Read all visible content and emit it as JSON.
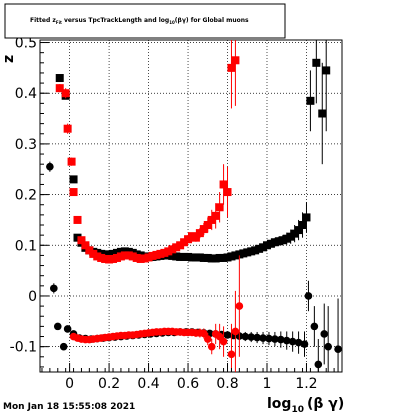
{
  "chart_data": {
    "type": "scatter",
    "title": "Fitted z_Fit versus TpcTrackLength and log_10(βγ) for Global muons",
    "title_parts": {
      "pre": "Fitted z",
      "sub1": "Fit",
      "mid": " versus TpcTrackLength and log",
      "sub2": "10",
      "post": "(βγ) for Global muons"
    },
    "timestamp": "Mon Jan 18 15:55:08 2021",
    "xlabel_main": "log",
    "xlabel_sub": "10",
    "xlabel_tail": "(β γ)",
    "ylabel": "z",
    "xlim": [
      -0.15,
      1.38
    ],
    "ylim": [
      -0.15,
      0.505
    ],
    "grid": true,
    "x_ticks": [
      {
        "v": 0,
        "label": "0"
      },
      {
        "v": 0.2,
        "label": "0.2"
      },
      {
        "v": 0.4,
        "label": "0.4"
      },
      {
        "v": 0.6,
        "label": "0.6"
      },
      {
        "v": 0.8,
        "label": "0.8"
      },
      {
        "v": 1,
        "label": "1"
      },
      {
        "v": 1.2,
        "label": "1.2"
      }
    ],
    "y_ticks": [
      {
        "v": -0.1,
        "label": "-0.1"
      },
      {
        "v": 0,
        "label": "0"
      },
      {
        "v": 0.1,
        "label": "0.1"
      },
      {
        "v": 0.2,
        "label": "0.2"
      },
      {
        "v": 0.3,
        "label": "0.3"
      },
      {
        "v": 0.4,
        "label": "0.4"
      },
      {
        "v": 0.5,
        "label": "0.5"
      }
    ],
    "series": [
      {
        "color": "#000000",
        "marker": "square",
        "points": [
          [
            -0.05,
            0.43,
            0.005
          ],
          [
            -0.02,
            0.395,
            0.006
          ],
          [
            0.02,
            0.23,
            0.006
          ],
          [
            0.04,
            0.115,
            0.004
          ],
          [
            0.06,
            0.105,
            0.003
          ],
          [
            0.08,
            0.095,
            0.003
          ],
          [
            0.1,
            0.09,
            0.003
          ],
          [
            0.12,
            0.087,
            0.003
          ],
          [
            0.14,
            0.085,
            0.003
          ],
          [
            0.16,
            0.083,
            0.003
          ],
          [
            0.18,
            0.082,
            0.003
          ],
          [
            0.2,
            0.082,
            0.003
          ],
          [
            0.22,
            0.083,
            0.003
          ],
          [
            0.24,
            0.085,
            0.003
          ],
          [
            0.26,
            0.087,
            0.003
          ],
          [
            0.28,
            0.088,
            0.003
          ],
          [
            0.3,
            0.087,
            0.003
          ],
          [
            0.32,
            0.085,
            0.003
          ],
          [
            0.34,
            0.082,
            0.003
          ],
          [
            0.36,
            0.08,
            0.003
          ],
          [
            0.38,
            0.078,
            0.003
          ],
          [
            0.4,
            0.077,
            0.003
          ],
          [
            0.42,
            0.077,
            0.003
          ],
          [
            0.44,
            0.078,
            0.003
          ],
          [
            0.46,
            0.079,
            0.003
          ],
          [
            0.48,
            0.08,
            0.003
          ],
          [
            0.5,
            0.08,
            0.003
          ],
          [
            0.52,
            0.079,
            0.003
          ],
          [
            0.54,
            0.078,
            0.003
          ],
          [
            0.56,
            0.077,
            0.003
          ],
          [
            0.58,
            0.077,
            0.003
          ],
          [
            0.6,
            0.077,
            0.003
          ],
          [
            0.62,
            0.076,
            0.003
          ],
          [
            0.64,
            0.076,
            0.003
          ],
          [
            0.66,
            0.076,
            0.003
          ],
          [
            0.68,
            0.075,
            0.003
          ],
          [
            0.7,
            0.075,
            0.003
          ],
          [
            0.72,
            0.074,
            0.003
          ],
          [
            0.74,
            0.074,
            0.003
          ],
          [
            0.76,
            0.075,
            0.003
          ],
          [
            0.78,
            0.075,
            0.004
          ],
          [
            0.8,
            0.076,
            0.004
          ],
          [
            0.82,
            0.078,
            0.004
          ],
          [
            0.84,
            0.08,
            0.004
          ],
          [
            0.86,
            0.082,
            0.004
          ],
          [
            0.88,
            0.084,
            0.004
          ],
          [
            0.9,
            0.086,
            0.005
          ],
          [
            0.92,
            0.088,
            0.005
          ],
          [
            0.94,
            0.09,
            0.005
          ],
          [
            0.96,
            0.093,
            0.006
          ],
          [
            0.98,
            0.096,
            0.006
          ],
          [
            1.0,
            0.1,
            0.007
          ],
          [
            1.02,
            0.103,
            0.007
          ],
          [
            1.04,
            0.106,
            0.008
          ],
          [
            1.06,
            0.108,
            0.009
          ],
          [
            1.08,
            0.11,
            0.01
          ],
          [
            1.1,
            0.113,
            0.012
          ],
          [
            1.12,
            0.117,
            0.014
          ],
          [
            1.14,
            0.123,
            0.017
          ],
          [
            1.16,
            0.13,
            0.02
          ],
          [
            1.18,
            0.14,
            0.025
          ],
          [
            1.2,
            0.155,
            0.03
          ],
          [
            1.22,
            0.385,
            0.06
          ],
          [
            1.25,
            0.46,
            0.08
          ],
          [
            1.28,
            0.36,
            0.1
          ],
          [
            1.3,
            0.445,
            0.12
          ]
        ]
      },
      {
        "color": "#ff0000",
        "marker": "square",
        "points": [
          [
            -0.05,
            0.41,
            0.008
          ],
          [
            -0.02,
            0.4,
            0.01
          ],
          [
            -0.01,
            0.33,
            0.01
          ],
          [
            0.01,
            0.265,
            0.008
          ],
          [
            0.02,
            0.205,
            0.006
          ],
          [
            0.04,
            0.15,
            0.005
          ],
          [
            0.06,
            0.11,
            0.004
          ],
          [
            0.08,
            0.1,
            0.003
          ],
          [
            0.1,
            0.09,
            0.003
          ],
          [
            0.12,
            0.083,
            0.003
          ],
          [
            0.14,
            0.078,
            0.003
          ],
          [
            0.16,
            0.075,
            0.003
          ],
          [
            0.18,
            0.073,
            0.003
          ],
          [
            0.2,
            0.072,
            0.003
          ],
          [
            0.22,
            0.073,
            0.003
          ],
          [
            0.24,
            0.075,
            0.003
          ],
          [
            0.26,
            0.078,
            0.003
          ],
          [
            0.28,
            0.08,
            0.003
          ],
          [
            0.3,
            0.08,
            0.003
          ],
          [
            0.32,
            0.078,
            0.003
          ],
          [
            0.34,
            0.075,
            0.003
          ],
          [
            0.36,
            0.073,
            0.003
          ],
          [
            0.38,
            0.074,
            0.003
          ],
          [
            0.4,
            0.076,
            0.003
          ],
          [
            0.42,
            0.079,
            0.003
          ],
          [
            0.44,
            0.081,
            0.003
          ],
          [
            0.46,
            0.083,
            0.003
          ],
          [
            0.48,
            0.085,
            0.003
          ],
          [
            0.5,
            0.088,
            0.004
          ],
          [
            0.52,
            0.092,
            0.004
          ],
          [
            0.54,
            0.096,
            0.004
          ],
          [
            0.56,
            0.1,
            0.005
          ],
          [
            0.58,
            0.106,
            0.005
          ],
          [
            0.6,
            0.112,
            0.006
          ],
          [
            0.62,
            0.118,
            0.007
          ],
          [
            0.64,
            0.115,
            0.008
          ],
          [
            0.66,
            0.124,
            0.01
          ],
          [
            0.68,
            0.132,
            0.012
          ],
          [
            0.7,
            0.14,
            0.015
          ],
          [
            0.72,
            0.15,
            0.02
          ],
          [
            0.74,
            0.158,
            0.025
          ],
          [
            0.76,
            0.175,
            0.03
          ],
          [
            0.78,
            0.22,
            0.04
          ],
          [
            0.8,
            0.205,
            0.05
          ],
          [
            0.82,
            0.45,
            0.08
          ],
          [
            0.84,
            0.465,
            0.09
          ]
        ]
      },
      {
        "color": "#000000",
        "marker": "circle",
        "points": [
          [
            -0.1,
            0.255,
            0.01
          ],
          [
            -0.08,
            0.015,
            0.01
          ],
          [
            -0.06,
            -0.06,
            0.006
          ],
          [
            -0.03,
            -0.1,
            0.005
          ],
          [
            -0.01,
            -0.065,
            0.004
          ],
          [
            0.02,
            -0.075,
            0.004
          ],
          [
            0.05,
            -0.083,
            0.003
          ],
          [
            0.08,
            -0.084,
            0.003
          ],
          [
            0.11,
            -0.085,
            0.003
          ],
          [
            0.14,
            -0.084,
            0.003
          ],
          [
            0.17,
            -0.083,
            0.003
          ],
          [
            0.2,
            -0.082,
            0.003
          ],
          [
            0.23,
            -0.081,
            0.003
          ],
          [
            0.26,
            -0.08,
            0.003
          ],
          [
            0.29,
            -0.079,
            0.003
          ],
          [
            0.32,
            -0.078,
            0.003
          ],
          [
            0.35,
            -0.077,
            0.003
          ],
          [
            0.38,
            -0.076,
            0.003
          ],
          [
            0.41,
            -0.075,
            0.003
          ],
          [
            0.44,
            -0.074,
            0.003
          ],
          [
            0.47,
            -0.073,
            0.003
          ],
          [
            0.5,
            -0.072,
            0.003
          ],
          [
            0.53,
            -0.072,
            0.003
          ],
          [
            0.56,
            -0.071,
            0.003
          ],
          [
            0.59,
            -0.071,
            0.003
          ],
          [
            0.62,
            -0.071,
            0.004
          ],
          [
            0.65,
            -0.072,
            0.004
          ],
          [
            0.68,
            -0.073,
            0.004
          ],
          [
            0.71,
            -0.074,
            0.005
          ],
          [
            0.74,
            -0.075,
            0.005
          ],
          [
            0.77,
            -0.076,
            0.006
          ],
          [
            0.8,
            -0.077,
            0.006
          ],
          [
            0.83,
            -0.078,
            0.007
          ],
          [
            0.86,
            -0.079,
            0.008
          ],
          [
            0.89,
            -0.08,
            0.009
          ],
          [
            0.92,
            -0.081,
            0.01
          ],
          [
            0.95,
            -0.082,
            0.011
          ],
          [
            0.98,
            -0.083,
            0.012
          ],
          [
            1.01,
            -0.084,
            0.013
          ],
          [
            1.04,
            -0.085,
            0.014
          ],
          [
            1.07,
            -0.086,
            0.016
          ],
          [
            1.1,
            -0.088,
            0.018
          ],
          [
            1.13,
            -0.09,
            0.02
          ],
          [
            1.16,
            -0.092,
            0.022
          ],
          [
            1.19,
            -0.095,
            0.025
          ],
          [
            1.21,
            0.0,
            0.03
          ],
          [
            1.24,
            -0.06,
            0.04
          ],
          [
            1.26,
            -0.135,
            0.05
          ],
          [
            1.29,
            -0.075,
            0.06
          ],
          [
            1.31,
            -0.1,
            0.08
          ],
          [
            1.36,
            -0.105,
            0.1
          ]
        ]
      },
      {
        "color": "#ff0000",
        "marker": "circle",
        "points": [
          [
            0.02,
            -0.08,
            0.004
          ],
          [
            0.04,
            -0.083,
            0.003
          ],
          [
            0.06,
            -0.085,
            0.003
          ],
          [
            0.08,
            -0.086,
            0.003
          ],
          [
            0.1,
            -0.086,
            0.003
          ],
          [
            0.12,
            -0.085,
            0.003
          ],
          [
            0.14,
            -0.084,
            0.003
          ],
          [
            0.16,
            -0.083,
            0.003
          ],
          [
            0.18,
            -0.082,
            0.003
          ],
          [
            0.2,
            -0.081,
            0.003
          ],
          [
            0.22,
            -0.08,
            0.003
          ],
          [
            0.24,
            -0.079,
            0.003
          ],
          [
            0.26,
            -0.078,
            0.003
          ],
          [
            0.28,
            -0.078,
            0.003
          ],
          [
            0.3,
            -0.077,
            0.003
          ],
          [
            0.32,
            -0.077,
            0.003
          ],
          [
            0.34,
            -0.076,
            0.003
          ],
          [
            0.36,
            -0.075,
            0.003
          ],
          [
            0.38,
            -0.074,
            0.003
          ],
          [
            0.4,
            -0.073,
            0.003
          ],
          [
            0.42,
            -0.072,
            0.004
          ],
          [
            0.44,
            -0.071,
            0.004
          ],
          [
            0.46,
            -0.071,
            0.004
          ],
          [
            0.48,
            -0.07,
            0.004
          ],
          [
            0.5,
            -0.07,
            0.004
          ],
          [
            0.52,
            -0.07,
            0.005
          ],
          [
            0.54,
            -0.071,
            0.005
          ],
          [
            0.56,
            -0.071,
            0.005
          ],
          [
            0.58,
            -0.072,
            0.006
          ],
          [
            0.6,
            -0.072,
            0.006
          ],
          [
            0.62,
            -0.072,
            0.007
          ],
          [
            0.64,
            -0.073,
            0.008
          ],
          [
            0.66,
            -0.073,
            0.009
          ],
          [
            0.68,
            -0.074,
            0.01
          ],
          [
            0.7,
            -0.085,
            0.012
          ],
          [
            0.72,
            -0.1,
            0.015
          ],
          [
            0.74,
            -0.075,
            0.02
          ],
          [
            0.76,
            -0.08,
            0.025
          ],
          [
            0.78,
            -0.09,
            0.03
          ],
          [
            0.82,
            -0.115,
            0.06
          ],
          [
            0.84,
            -0.07,
            0.08
          ],
          [
            0.86,
            -0.02,
            0.1
          ]
        ]
      }
    ]
  }
}
